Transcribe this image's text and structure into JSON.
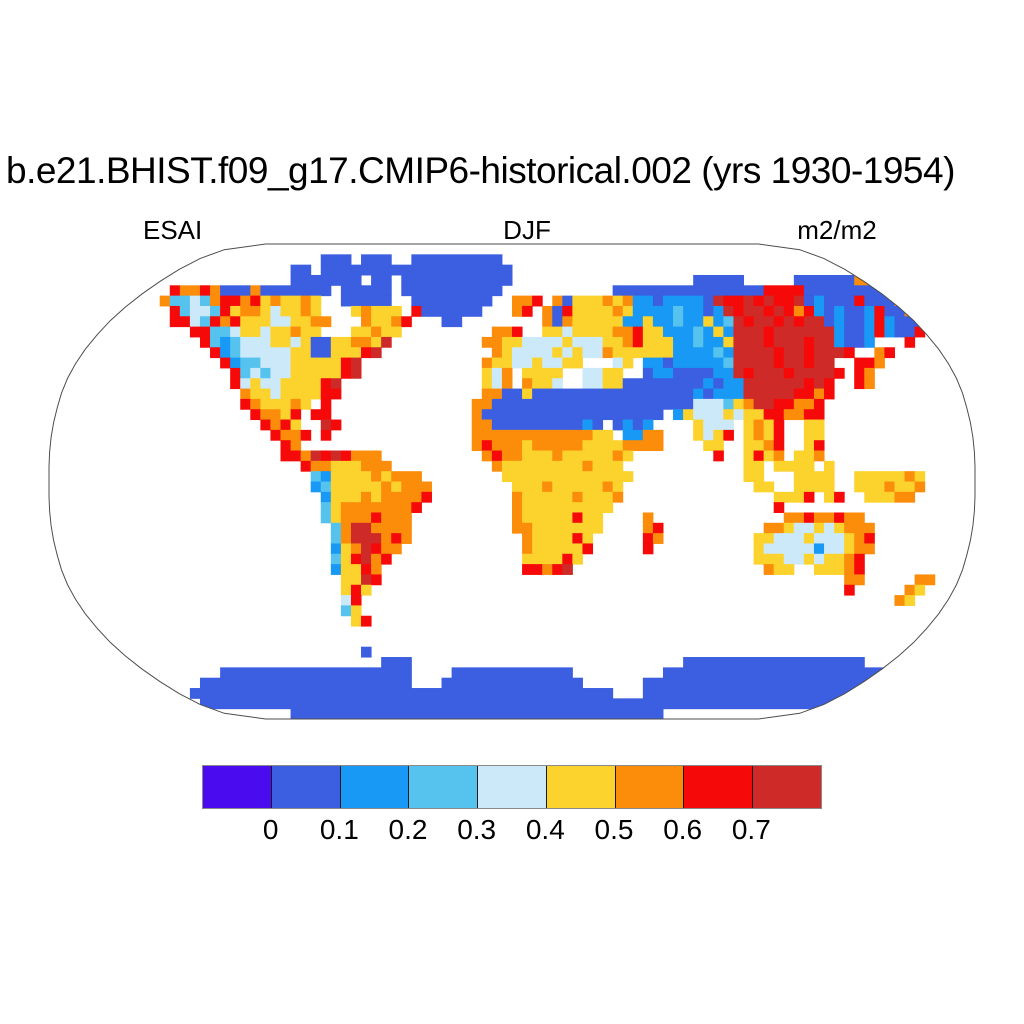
{
  "header": {
    "title": "b.e21.BHIST.f09_g17.CMIP6-historical.002 (yrs 1930-1954)",
    "left_string": "ESAI",
    "center_string": "DJF",
    "right_string": "m2/m2"
  },
  "chart_data": {
    "type": "heatmap",
    "title": "b.e21.BHIST.f09_g17.CMIP6-historical.002 (yrs 1930-1954)",
    "variable": "ESAI",
    "season": "DJF",
    "units": "m2/m2",
    "projection": "robinson-world-map",
    "legend_position": "bottom",
    "colorbar": {
      "tick_labels": [
        "0",
        "0.1",
        "0.2",
        "0.3",
        "0.4",
        "0.5",
        "0.6",
        "0.7"
      ],
      "colors": [
        "#4A0BEF",
        "#3B5FE0",
        "#1899F5",
        "#55C3EE",
        "#CBE9F8",
        "#FCD22C",
        "#FB8D0B",
        "#F60909",
        "#CE2B28"
      ],
      "bin_meaning": "values below 0, eight bins of width 0.1 from 0 to 0.7, values above 0.7"
    },
    "palette": {
      "0": "#4A0BEF",
      "1": "#3B5FE0",
      "2": "#1899F5",
      "3": "#55C3EE",
      "4": "#CBE9F8",
      "5": "#FCD22C",
      "6": "#FB8D0B",
      "7": "#F60909",
      "8": "#CE2B28",
      ".": "ocean-white"
    },
    "grid": {
      "cols": 92,
      "rows_count": 46,
      "encoding": "run-length tokens char:count per row, '.' = ocean",
      "rows": [
        ".:92",
        ".:27,1:3,.:1,1:3,.:2,1:9,.:47",
        ".:24,1:2,.:1,1:19,.:34,1:9,.:3",
        ".:5,1:3,.:16,1:7,.:1,1:2,.:1,1:11,.:18,1:5,.:5,1:6,6:2,1:8,.:2",
        ".:4,7:1,6:2,.:5,7:1,6:2,7:1,6:1,1:3,6:1,1:7,.:1,1:5,.:1,1:10,.:11,1:15,7:4,1:8,6:2,1:4,.:3",
        ".:11,6:1,3:2,4:1,3:1,6:1,7:2,6:1,7:1,5:1,6:1,5:2,6:1,5:1,.:2,1:5,.:2,1:8,.:2,6:2,7:1,.:1,6:1,1:1,5:3,6:1,5:1,6:1,2:2,1:1,2:4,1:1,8:1,7:2,8:1,7:1,8:1,7:2,8:1,1:1,2:1,1:3,7:1,1:3,6:2,1:3,.:3",
        ".:12,7:1,3:1,4:2,3:1,7:1,5:1,6:2,5:1,4:1,5:2,6:1,5:1,.:3,5:1,6:1,5:3,.:1,7:1,1:6,.:3,6:1,7:1,.:1,6:1,1:1,7:1,5:4,6:1,5:1,2:4,3:1,2:2,1:1,2:1,8:1,7:1,8:2,7:1,8:1,7:1,6:1,7:1,2:1,1:1,2:1,1:2,2:1,7:1,1:2,6:1,1:1,.:1,1:1,.:3",
        ".:12,7:2,4:1,3:1,7:1,6:1,7:1,5:3,4:2,5:2,6:2,.:3,6:1,5:2,6:1,7:1,.:3,1:2,.:8,6:1,1:1,6:1,5:2,5:3,2:2,5:1,2:2,3:1,2:2,5:1,2:1,3:1,8:1,7:1,8:2,7:1,8:1,7:1,8:1,8:1,1:1,2:1,1:1,1:1,2:1,7:1,2:1,1:2,1:1,7:1,.:4",
        ".:14,7:2,3:1,3:1,4:1,5:2,4:1,5:2,6:1,5:2,.:3,5:2,6:1,5:2,.:9,6:2,7:1,.:2,5:2,4:1,5:2,5:2,6:2,7:1,5:1,5:1,2:3,3:1,2:1,5:1,2:1,8:3,7:1,8:4,8:2,2:1,1:1,1:1,2:1,7:1,2:1,1:1,1:1,7:1,.:5",
        ".:15,7:1,3:1,2:1,3:1,4:3,5:2,4:1,5:1,1:2,5:1,5:1,6:2,5:1,8:1,.:9,6:2,5:2,4:2,4:2,5:1,4:3,5:2,6:1,7:1,5:1,5:2,2:2,3:1,2:2,5:1,8:3,7:1,8:3,7:1,8:1,8:1,2:1,1:1,1:1,2:1,.:3,7:1,.:6",
        ".:16,7:1,2:1,3:1,4:5,5:2,1:2,5:3,7:1,8:1,.:11,6:1,5:1,4:3,4:1,5:1,4:1,5:1,4:2,6:1,5:4,5:2,2:4,3:1,2:1,8:4,7:1,8:2,7:1,8:2,8:1,7:1,.:2,6:1,7:1,.:8",
        ".:17,7:1,2:1,3:2,4:3,5:5,7:1,8:1,.:12,6:1,5:2,4:2,5:1,4:2,5:2,.:3,4:1,5:1,.:1,2:2,1:1,2:2,2:3,3:1,8:4,7:1,8:2,7:1,8:2,.:2,7:2,6:1,.:9",
        ".:18,7:1,3:1,4:1,3:1,4:2,5:5,7:1,8:1,.:12,5:1,4:1,6:1,.:1,5:4,.:2,4:2,5:2,.:2,1:1,2:2,1:2,1:2,2:2,8:1,7:1,8:3,7:1,8:3,8:1,7:1,.:1,7:1,6:1,.:10",
        ".:18,7:1,4:1,5:1,4:2,5:4,7:1,8:1,.:14,5:1,4:1,6:1,.:1,6:1,5:2,4:1,.:2,4:2,5:2,1:7,1:1,2:1,1:1,2:2,8:6,7:1,8:1,7:1,.:2,7:1,6:1,.:10",
        ".:19,6:1,5:2,4:1,5:4,7:2,.:14,6:2,1:2,5:1,1:6,1:10,2:1,1:1,2:3,8:5,7:2,6:1,7:1,.:14",
        ".:19,7:1,6:1,5:3,6:1,5:1,.:1,7:1,.:14,6:2,1:13,1:7,4:3,3:1,5:1,6:1,8:2,7:2,6:2,7:1,.:15",
        ".:20,7:1,6:2,5:1,7:1,.:1,7:2,.:14,6:1,1:14,1:4,.:1,2:1,5:1,4:3,5:1,4:1,5:2,7:1,7:1,6:2,7:2,.:15",
        ".:21,7:1,6:1,7:1,5:1,.:2,8:1,7:1,.:13,6:2,1:9,2:1,1:1,.:1,1:1,2:1,1:1,2:1,.:4,5:1,4:3,.:1,5:1,6:1,5:1,7:1,.:2,5:2,.:15",
        ".:22,7:1,6:2,7:1,.:1,7:1,.:14,6:12,5:2,.:1,2:2,6:2,.:3,5:1,4:1,5:1,7:1,.:1,5:1,6:1,5:1,7:1,.:2,5:2,.:15",
        ".:23,7:1,6:1,.:17,6:1,7:1,6:3,5:1,6:5,5:4,6:4,.:4,5:2,.:2,5:2,6:1,7:1,.:2,5:1,7:1,.:15",
        ".:23,7:2,6:1,8:1,7:1,8:1,7:1,6:3,.:10,6:1,7:1,6:2,5:3,6:1,5:5,6:1,5:1,.:8,7:1,.:2,5:1,7:1,5:1,6:1,.:1,5:2,6:1,.:15",
        ".:25,7:1,6:2,5:3,6:3,.:10,6:1,5:8,6:1,5:3,.:12,5:2,.:1,5:4,.:1,5:1,.:14",
        ".:26,3:1,2:1,5:4,6:1,5:1,6:3,.:8,5:13,.:11,5:2,.:3,5:4,.:2,5:5,6:1,5:1,.:5",
        ".:26,2:1,3:1,5:5,6:1,5:1,6:3,.:8,5:3,6:1,5:5,6:1,5:1,.:13,5:2,.:2,5:4,.:2,5:3,6:1,5:2,6:1,.:5",
        ".:27,2:1,5:3,6:1,5:1,6:4,7:1,.:8,6:1,5:5,6:1,5:3,6:1,.:15,5:3,7:1,.:1,5:1,7:1,.:2,5:3,6:2,.:6",
        ".:27,3:1,5:1,6:7,7:1,.:9,6:1,5:9,.:16,7:1,.:19",
        ".:27,3:1,5:1,6:3,7:1,6:3,.:10,6:1,5:5,7:1,5:2,.:4,6:1,.:13,6:2,7:1,6:2,7:1,6:2,.:11",
        ".:28,3:1,6:1,8:2,6:4,.:10,6:2,5:7,.:4,6:1,7:1,.:10,6:2,5:1,4:2,5:1,4:1,5:1,6:3,.:10",
        ".:28,3:1,6:1,8:3,6:1,7:1,6:1,.:11,6:1,5:4,7:1,5:1,.:5,7:1,6:1,.:9,5:2,4:3,5:1,4:3,5:1,6:1,7:1,.:10",
        ".:28,2:1,5:1,6:1,8:1,7:1,6:2,.:12,6:1,5:5,7:1,.:5,7:1,.:10,5:1,4:5,2:1,4:2,5:1,6:2,.:10",
        ".:28,3:1,5:1,7:1,8:1,6:1,7:1,.:13,5:4,7:1,5:1,.:17,5:3,4:2,5:1,4:1,5:2,6:1,7:1,.:11",
        ".:28,2:1,5:2,7:1,6:1,.:14,7:2,6:1,7:1,8:1,.:19,6:1,5:2,.:2,5:3,6:1,7:1,.:11",
        ".:29,5:2,8:1,7:1,.:46,6:2,.:5,6:2,.:4",
        ".:29,5:1,7:1,5:1,.:47,7:1,.:5,6:1,5:1,.:5",
        ".:29,4:1,7:1,.:53,6:1,5:1,.:6",
        ".:29,3:1,5:1,.:61",
        ".:30,5:1,7:1,.:60",
        ".:92",
        ".:92",
        ".:31,1:1,.:60",
        ".:33,1:3,.:27,1:18,.:11",
        ".:17,1:19,.:4,1:12,.:9,1:24,.:7",
        ".:15,1:21,.:3,1:14,.:6,1:25,.:8",
        ".:14,1:42,.:3,1:27,.:6",
        ".:15,1:69,.:8",
        ".:24,1:37,.:31"
      ]
    }
  }
}
